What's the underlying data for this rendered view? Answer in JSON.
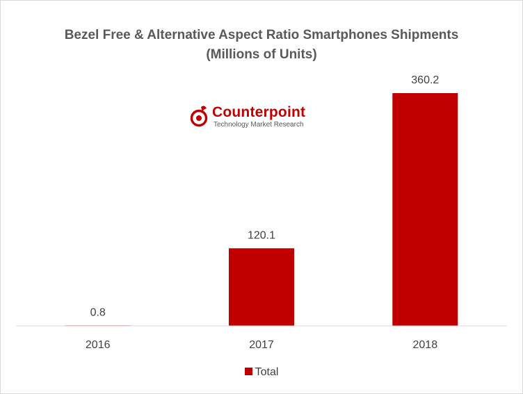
{
  "chart_data": {
    "type": "bar",
    "title": "Bezel Free & Alternative Aspect Ratio Smartphones Shipments",
    "subtitle": "(Millions of Units)",
    "categories": [
      "2016",
      "2017",
      "2018"
    ],
    "series": [
      {
        "name": "Total",
        "values": [
          0.8,
          120.1,
          360.2
        ],
        "color": "#c00000"
      }
    ],
    "data_labels": [
      "0.8",
      "120.1",
      "360.2"
    ],
    "ylim": [
      0,
      360.2
    ],
    "grid": false,
    "legend": "bottom"
  },
  "logo": {
    "name": "Counterpoint",
    "tagline": "Technology Market Research",
    "icon": "counterpoint-logo-icon",
    "color": "#c00000"
  }
}
